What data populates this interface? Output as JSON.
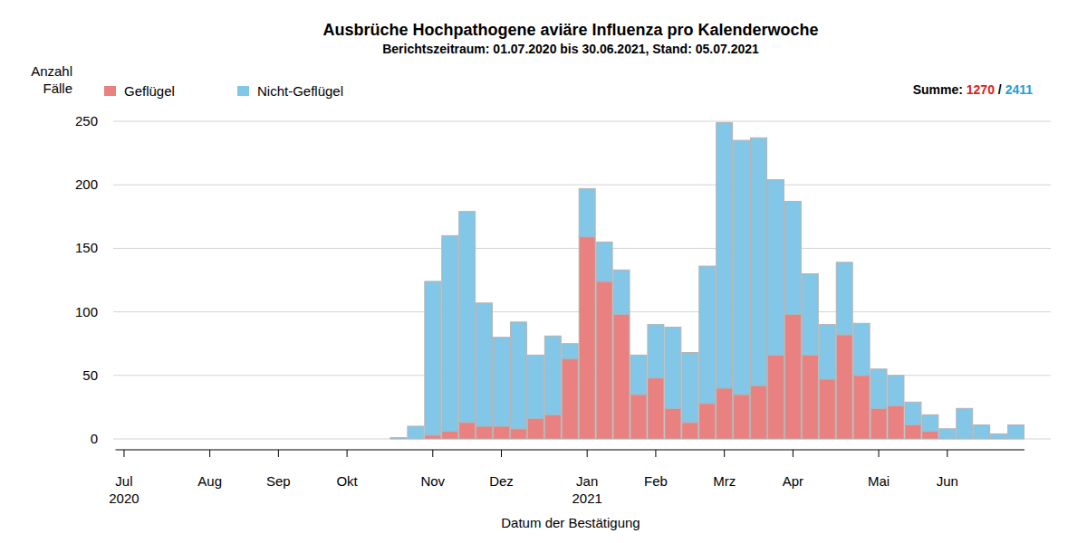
{
  "chart_data": {
    "type": "bar",
    "title": "Ausbrüche Hochpathogene aviäre Influenza pro Kalenderwoche",
    "subtitle": "Berichtszeitraum: 01.07.2020 bis 30.06.2021, Stand: 05.07.2021",
    "x_label": "Datum der Bestätigung",
    "y_label": "Anzahl\nFälle",
    "summary": {
      "label": "Summe:",
      "separator": "/",
      "values": [
        1270,
        2411
      ]
    },
    "categories": [
      "Jul\n2020",
      null,
      null,
      null,
      null,
      "Aug",
      null,
      null,
      null,
      "Sep",
      null,
      null,
      null,
      "Okt",
      null,
      null,
      null,
      null,
      "Nov",
      null,
      null,
      null,
      "Dez",
      null,
      null,
      null,
      null,
      "Jan\n2021",
      null,
      null,
      null,
      "Feb",
      null,
      null,
      null,
      "Mrz",
      null,
      null,
      null,
      "Apr",
      null,
      null,
      null,
      null,
      "Mai",
      null,
      null,
      null,
      "Jun",
      null,
      null,
      null,
      null
    ],
    "series": [
      {
        "name": "Geflügel",
        "color": "#e8817f",
        "values": [
          0,
          0,
          0,
          0,
          0,
          0,
          0,
          0,
          0,
          0,
          0,
          0,
          0,
          0,
          0,
          0,
          0,
          0,
          3,
          6,
          13,
          10,
          10,
          8,
          16,
          19,
          63,
          159,
          124,
          98,
          35,
          48,
          24,
          13,
          28,
          40,
          35,
          42,
          66,
          98,
          66,
          47,
          82,
          50,
          24,
          26,
          11,
          6,
          0,
          0,
          0,
          0,
          0
        ]
      },
      {
        "name": "Nicht-Geflügel",
        "color": "#82c6e8",
        "values": [
          0,
          0,
          0,
          0,
          0,
          0,
          0,
          0,
          0,
          0,
          0,
          0,
          0,
          0,
          0,
          0,
          1,
          10,
          121,
          154,
          166,
          97,
          70,
          84,
          50,
          62,
          12,
          38,
          31,
          35,
          31,
          42,
          64,
          55,
          108,
          209,
          200,
          195,
          138,
          89,
          64,
          43,
          57,
          41,
          31,
          24,
          18,
          13,
          8,
          24,
          11,
          4,
          11
        ]
      }
    ],
    "stacked": true,
    "ylim": [
      0,
      250
    ],
    "yticks": [
      0,
      50,
      100,
      150,
      200,
      250
    ],
    "grid": true,
    "legend": "top-left"
  }
}
